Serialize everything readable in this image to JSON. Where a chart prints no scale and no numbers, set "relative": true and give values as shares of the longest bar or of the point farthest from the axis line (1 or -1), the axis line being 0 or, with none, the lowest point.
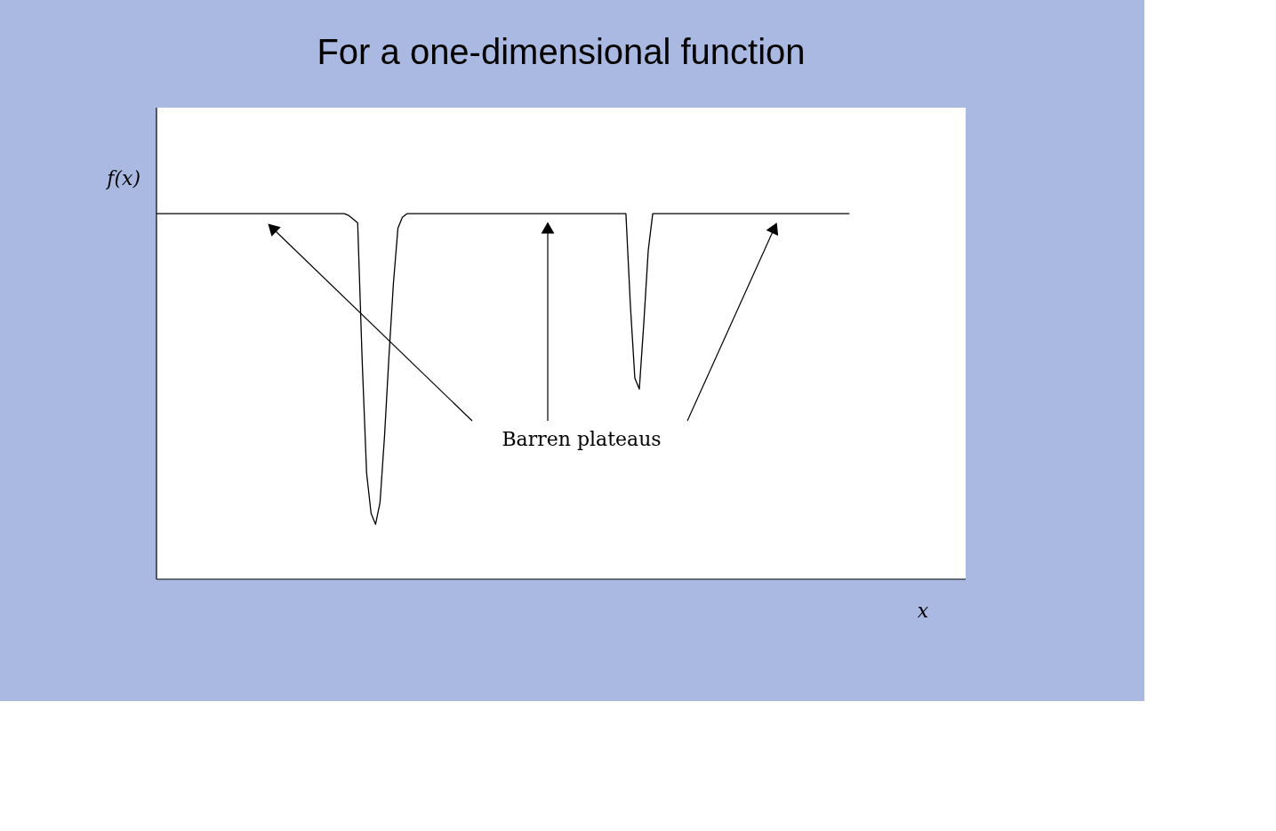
{
  "chart_data": {
    "type": "line",
    "relative": true,
    "title": "For a one-dimensional function",
    "ylabel": "f(x)",
    "xlabel": "x",
    "annotations": [
      "Barren plateaus"
    ],
    "categories": [
      null,
      null,
      null,
      null,
      null,
      null,
      null,
      null,
      null,
      null,
      null,
      null,
      null,
      null,
      null,
      null,
      null,
      null,
      null,
      null,
      null,
      null,
      null,
      null,
      null,
      null,
      null,
      null,
      null,
      null,
      null,
      null,
      null,
      null,
      null,
      null,
      null,
      null,
      null,
      null,
      null,
      null,
      null,
      null,
      null,
      null,
      null,
      null,
      null,
      null,
      null,
      null,
      null,
      null,
      null,
      null,
      null,
      null,
      null,
      null,
      null,
      null,
      null,
      null,
      null,
      null,
      null,
      null,
      null,
      null,
      null,
      null,
      null,
      null,
      null,
      null,
      null,
      null,
      null,
      null,
      null,
      null,
      null,
      null,
      null,
      null,
      null,
      null,
      null,
      null,
      null,
      null,
      null,
      null,
      null,
      null,
      null,
      null,
      null,
      null,
      null,
      null,
      null,
      null,
      null,
      null,
      null,
      null,
      null,
      null,
      null,
      null,
      null,
      null,
      null,
      null,
      null,
      null,
      null,
      null,
      null,
      null,
      null,
      null,
      null,
      null,
      null,
      null,
      null,
      null,
      null,
      null,
      null,
      null,
      null,
      null,
      null,
      null,
      null,
      null,
      null,
      null,
      null,
      null,
      null,
      null,
      null,
      null,
      null,
      null,
      null,
      null,
      null,
      null,
      null,
      null,
      null,
      null,
      null,
      null,
      null,
      null,
      null,
      null,
      null,
      null,
      null,
      null,
      null,
      null,
      null,
      null,
      null,
      null,
      null,
      null,
      null,
      null,
      null,
      null,
      null,
      null
    ],
    "series": [
      {
        "color": "#000000",
        "values": [
          1,
          1,
          1,
          1,
          1,
          1,
          1,
          1,
          1,
          1,
          1,
          1,
          1,
          1,
          1,
          1,
          1,
          1,
          1,
          1,
          1,
          1,
          1,
          1,
          1,
          1,
          1,
          1,
          1,
          1,
          1,
          1,
          1,
          1,
          1,
          1,
          1,
          1,
          1,
          1,
          1,
          1,
          1,
          0.995,
          0.985,
          0.975,
          0.6,
          0.29,
          0.18,
          0.15,
          0.21,
          0.39,
          0.61,
          0.81,
          0.96,
          0.99,
          1,
          1,
          1,
          1,
          1,
          1,
          1,
          1,
          1,
          1,
          1,
          1,
          1,
          1,
          1,
          1,
          1,
          1,
          1,
          1,
          1,
          1,
          1,
          1,
          1,
          1,
          1,
          1,
          1,
          1,
          1,
          1,
          1,
          1,
          1,
          1,
          1,
          1,
          1,
          1,
          1,
          1,
          1,
          1,
          1,
          1,
          1,
          1,
          1,
          1,
          0.75,
          0.55,
          0.52,
          0.7,
          0.9,
          1,
          1,
          1,
          1,
          1,
          1,
          1,
          1,
          1,
          1,
          1,
          1,
          1,
          1,
          1,
          1,
          1,
          1,
          1,
          1,
          1,
          1,
          1,
          1,
          1,
          1,
          1,
          1,
          1,
          1,
          1,
          1,
          1,
          1,
          1,
          1,
          1,
          1,
          1,
          1,
          1,
          1,
          1,
          1,
          1,
          null,
          null,
          null,
          null,
          null,
          null,
          null,
          null,
          null,
          null,
          null,
          null,
          null,
          null,
          null,
          null,
          null,
          null,
          null,
          null,
          null,
          null,
          null,
          null,
          null,
          null
        ]
      }
    ],
    "grid": false,
    "legend": false,
    "marker": "none",
    "line_style": "solid"
  }
}
